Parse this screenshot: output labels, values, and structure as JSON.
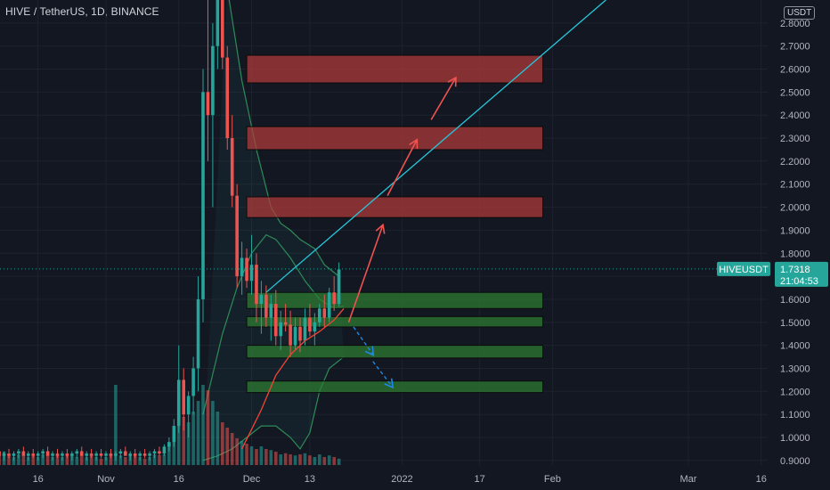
{
  "chart_data": {
    "type": "candlestick",
    "title": "HIVE / TetherUS, 1D, BINANCE",
    "currency": "USDT",
    "symbol_tag": "HIVEUSDT",
    "last_price": "1.7318",
    "countdown": "21:04:53",
    "ylim": [
      0.88,
      2.9
    ],
    "y_ticks": [
      "0.9000",
      "1.0000",
      "1.1000",
      "1.2000",
      "1.3000",
      "1.4000",
      "1.5000",
      "1.6000",
      "1.7000",
      "1.8000",
      "1.9000",
      "2.0000",
      "2.1000",
      "2.2000",
      "2.3000",
      "2.4000",
      "2.5000",
      "2.6000",
      "2.7000",
      "2.8000"
    ],
    "x_ticks": [
      {
        "label": "16",
        "day": -14
      },
      {
        "label": "Nov",
        "day": 0
      },
      {
        "label": "16",
        "day": 15
      },
      {
        "label": "Dec",
        "day": 30
      },
      {
        "label": "13",
        "day": 42
      },
      {
        "label": "2022",
        "day": 61
      },
      {
        "label": "17",
        "day": 77
      },
      {
        "label": "Feb",
        "day": 92
      },
      {
        "label": "Mar",
        "day": 120
      },
      {
        "label": "16",
        "day": 135
      }
    ],
    "candles": [
      [
        -28,
        0.92,
        0.94,
        0.9,
        0.93
      ],
      [
        -27,
        0.93,
        0.95,
        0.91,
        0.92
      ],
      [
        -26,
        0.92,
        0.94,
        0.9,
        0.93
      ],
      [
        -25,
        0.93,
        0.96,
        0.91,
        0.95
      ],
      [
        -24,
        0.95,
        0.97,
        0.92,
        0.93
      ],
      [
        -23,
        0.93,
        0.95,
        0.91,
        0.94
      ],
      [
        -22,
        0.94,
        0.96,
        0.92,
        0.92
      ],
      [
        -21,
        0.92,
        0.94,
        0.9,
        0.93
      ],
      [
        -20,
        0.93,
        0.95,
        0.91,
        0.92
      ],
      [
        -19,
        0.92,
        0.94,
        0.9,
        0.93
      ],
      [
        -18,
        0.93,
        0.95,
        0.91,
        0.94
      ],
      [
        -17,
        0.94,
        0.96,
        0.92,
        0.92
      ],
      [
        -16,
        0.92,
        0.94,
        0.9,
        0.93
      ],
      [
        -15,
        0.93,
        0.95,
        0.91,
        0.92
      ],
      [
        -14,
        0.92,
        0.94,
        0.9,
        0.93
      ],
      [
        -13,
        0.93,
        0.95,
        0.91,
        0.94
      ],
      [
        -12,
        0.94,
        0.96,
        0.92,
        0.92
      ],
      [
        -11,
        0.92,
        0.94,
        0.9,
        0.93
      ],
      [
        -10,
        0.93,
        0.95,
        0.91,
        0.92
      ],
      [
        -9,
        0.92,
        0.94,
        0.9,
        0.93
      ],
      [
        -8,
        0.93,
        0.95,
        0.91,
        0.92
      ],
      [
        -7,
        0.92,
        0.94,
        0.9,
        0.93
      ],
      [
        -6,
        0.93,
        0.95,
        0.91,
        0.94
      ],
      [
        -5,
        0.94,
        0.96,
        0.92,
        0.92
      ],
      [
        -4,
        0.92,
        0.94,
        0.9,
        0.93
      ],
      [
        -3,
        0.93,
        0.95,
        0.91,
        0.92
      ],
      [
        -2,
        0.92,
        0.94,
        0.9,
        0.93
      ],
      [
        -1,
        0.93,
        0.95,
        0.91,
        0.92
      ],
      [
        0,
        0.92,
        0.94,
        0.9,
        0.93
      ],
      [
        1,
        0.93,
        0.95,
        0.91,
        0.92
      ],
      [
        2,
        0.92,
        0.94,
        0.9,
        0.93
      ],
      [
        3,
        0.93,
        0.95,
        0.91,
        0.94
      ],
      [
        4,
        0.94,
        0.96,
        0.92,
        0.92
      ],
      [
        5,
        0.92,
        0.94,
        0.9,
        0.93
      ],
      [
        6,
        0.93,
        0.95,
        0.91,
        0.92
      ],
      [
        7,
        0.92,
        0.94,
        0.9,
        0.93
      ],
      [
        8,
        0.93,
        0.95,
        0.91,
        0.92
      ],
      [
        9,
        0.92,
        0.94,
        0.9,
        0.93
      ],
      [
        10,
        0.93,
        0.95,
        0.91,
        0.94
      ],
      [
        11,
        0.94,
        0.96,
        0.92,
        0.93
      ],
      [
        12,
        0.93,
        0.97,
        0.92,
        0.96
      ],
      [
        13,
        0.96,
        1.0,
        0.94,
        0.98
      ],
      [
        14,
        0.98,
        1.08,
        0.96,
        1.05
      ],
      [
        15,
        1.05,
        1.4,
        1.02,
        1.25
      ],
      [
        16,
        1.25,
        1.3,
        1.03,
        1.1
      ],
      [
        17,
        1.1,
        1.2,
        1.0,
        1.18
      ],
      [
        18,
        1.18,
        1.35,
        1.1,
        1.3
      ],
      [
        19,
        1.3,
        1.7,
        1.2,
        1.6
      ],
      [
        20,
        1.6,
        2.6,
        1.5,
        2.5
      ],
      [
        21,
        2.5,
        3.0,
        2.2,
        2.4
      ],
      [
        22,
        2.4,
        2.8,
        2.0,
        2.7
      ],
      [
        23,
        2.7,
        3.1,
        2.6,
        2.95
      ],
      [
        24,
        2.95,
        3.05,
        2.6,
        2.65
      ],
      [
        25,
        2.65,
        2.7,
        2.25,
        2.3
      ],
      [
        26,
        2.3,
        2.4,
        2.0,
        2.05
      ],
      [
        27,
        2.05,
        2.1,
        1.65,
        1.7
      ],
      [
        28,
        1.7,
        1.85,
        1.62,
        1.78
      ],
      [
        29,
        1.78,
        1.82,
        1.65,
        1.68
      ],
      [
        30,
        1.68,
        1.88,
        1.62,
        1.75
      ],
      [
        31,
        1.75,
        1.8,
        1.5,
        1.58
      ],
      [
        32,
        1.58,
        1.68,
        1.45,
        1.62
      ],
      [
        33,
        1.62,
        1.66,
        1.48,
        1.52
      ],
      [
        34,
        1.52,
        1.62,
        1.42,
        1.58
      ],
      [
        35,
        1.58,
        1.64,
        1.4,
        1.44
      ],
      [
        36,
        1.44,
        1.55,
        1.38,
        1.5
      ],
      [
        37,
        1.5,
        1.58,
        1.46,
        1.49
      ],
      [
        38,
        1.49,
        1.55,
        1.35,
        1.4
      ],
      [
        39,
        1.4,
        1.52,
        1.38,
        1.48
      ],
      [
        40,
        1.48,
        1.52,
        1.37,
        1.42
      ],
      [
        41,
        1.42,
        1.56,
        1.4,
        1.52
      ],
      [
        42,
        1.52,
        1.58,
        1.44,
        1.46
      ],
      [
        43,
        1.46,
        1.54,
        1.4,
        1.5
      ],
      [
        44,
        1.5,
        1.58,
        1.48,
        1.56
      ],
      [
        45,
        1.56,
        1.62,
        1.48,
        1.52
      ],
      [
        46,
        1.52,
        1.65,
        1.5,
        1.63
      ],
      [
        47,
        1.63,
        1.7,
        1.55,
        1.58
      ],
      [
        48,
        1.58,
        1.76,
        1.57,
        1.73
      ]
    ],
    "volume": [
      [
        -28,
        0.015
      ],
      [
        -27,
        0.02
      ],
      [
        -26,
        0.015
      ],
      [
        -25,
        0.02
      ],
      [
        -24,
        0.018
      ],
      [
        -23,
        0.015
      ],
      [
        -22,
        0.02
      ],
      [
        -21,
        0.025
      ],
      [
        -20,
        0.02
      ],
      [
        -19,
        0.015
      ],
      [
        -18,
        0.02
      ],
      [
        -17,
        0.018
      ],
      [
        -16,
        0.015
      ],
      [
        -15,
        0.02
      ],
      [
        -14,
        0.015
      ],
      [
        -13,
        0.02
      ],
      [
        -12,
        0.018
      ],
      [
        -11,
        0.015
      ],
      [
        -10,
        0.02
      ],
      [
        -9,
        0.015
      ],
      [
        -8,
        0.02
      ],
      [
        -7,
        0.018
      ],
      [
        -6,
        0.015
      ],
      [
        -5,
        0.02
      ],
      [
        -4,
        0.015
      ],
      [
        -3,
        0.02
      ],
      [
        -2,
        0.015
      ],
      [
        -1,
        0.012
      ],
      [
        0,
        0.015
      ],
      [
        1,
        0.02
      ],
      [
        2,
        0.15
      ],
      [
        3,
        0.018
      ],
      [
        4,
        0.015
      ],
      [
        5,
        0.02
      ],
      [
        6,
        0.018
      ],
      [
        7,
        0.015
      ],
      [
        8,
        0.012
      ],
      [
        9,
        0.015
      ],
      [
        10,
        0.02
      ],
      [
        11,
        0.018
      ],
      [
        12,
        0.02
      ],
      [
        13,
        0.04
      ],
      [
        14,
        0.06
      ],
      [
        15,
        0.12
      ],
      [
        16,
        0.09
      ],
      [
        17,
        0.08
      ],
      [
        18,
        0.1
      ],
      [
        19,
        0.12
      ],
      [
        20,
        0.15
      ],
      [
        21,
        0.14
      ],
      [
        22,
        0.12
      ],
      [
        23,
        0.1
      ],
      [
        24,
        0.08
      ],
      [
        25,
        0.07
      ],
      [
        26,
        0.06
      ],
      [
        27,
        0.05
      ],
      [
        28,
        0.045
      ],
      [
        29,
        0.04
      ],
      [
        30,
        0.035
      ],
      [
        31,
        0.03
      ],
      [
        32,
        0.035
      ],
      [
        33,
        0.03
      ],
      [
        34,
        0.028
      ],
      [
        35,
        0.025
      ],
      [
        36,
        0.02
      ],
      [
        37,
        0.022
      ],
      [
        38,
        0.02
      ],
      [
        39,
        0.018
      ],
      [
        40,
        0.02
      ],
      [
        41,
        0.022
      ],
      [
        42,
        0.018
      ],
      [
        43,
        0.015
      ],
      [
        44,
        0.02
      ],
      [
        45,
        0.015
      ],
      [
        46,
        0.018
      ],
      [
        47,
        0.015
      ],
      [
        48,
        0.012
      ]
    ],
    "resistance_zones": [
      [
        2.54,
        2.66
      ],
      [
        2.25,
        2.35
      ],
      [
        1.955,
        2.045
      ]
    ],
    "support_zones": [
      [
        1.56,
        1.63
      ],
      [
        1.48,
        1.525
      ],
      [
        1.345,
        1.4
      ],
      [
        1.195,
        1.245
      ]
    ],
    "zone_range_days": [
      29,
      90
    ],
    "trendline": {
      "from": [
        33,
        1.63
      ],
      "to": [
        103,
        2.9
      ]
    },
    "ema_curve": [
      [
        28,
        0.95
      ],
      [
        32,
        1.12
      ],
      [
        35,
        1.27
      ],
      [
        38,
        1.36
      ],
      [
        41,
        1.42
      ],
      [
        44,
        1.46
      ],
      [
        47,
        1.51
      ],
      [
        49,
        1.56
      ]
    ],
    "bollinger_upper": [
      [
        25,
        2.95
      ],
      [
        28,
        2.55
      ],
      [
        31,
        2.25
      ],
      [
        34,
        2.0
      ],
      [
        36,
        1.93
      ],
      [
        38,
        1.9
      ],
      [
        40,
        1.86
      ],
      [
        43,
        1.82
      ],
      [
        45,
        1.75
      ],
      [
        48,
        1.7
      ]
    ],
    "bollinger_middle": [
      [
        20,
        1.1
      ],
      [
        24,
        1.45
      ],
      [
        27,
        1.65
      ],
      [
        30,
        1.8
      ],
      [
        33,
        1.88
      ],
      [
        35,
        1.86
      ],
      [
        38,
        1.78
      ],
      [
        41,
        1.68
      ],
      [
        44,
        1.6
      ],
      [
        47,
        1.56
      ],
      [
        49,
        1.57
      ]
    ],
    "bollinger_lower": [
      [
        20,
        0.9
      ],
      [
        23,
        0.92
      ],
      [
        26,
        0.95
      ],
      [
        29,
        1.0
      ],
      [
        32,
        1.05
      ],
      [
        35,
        1.05
      ],
      [
        38,
        1.0
      ],
      [
        40,
        0.95
      ],
      [
        42,
        1.02
      ],
      [
        44,
        1.2
      ],
      [
        46,
        1.3
      ],
      [
        49,
        1.35
      ]
    ],
    "arrows_up": [
      {
        "from": [
          50,
          1.5
        ],
        "to": [
          57,
          1.92
        ]
      },
      {
        "from": [
          58,
          2.05
        ],
        "to": [
          64,
          2.29
        ]
      },
      {
        "from": [
          67,
          2.38
        ],
        "to": [
          72,
          2.56
        ]
      }
    ],
    "arrows_down": [
      {
        "from": [
          51,
          1.48
        ],
        "to": [
          55,
          1.36
        ]
      },
      {
        "from": [
          55,
          1.33
        ],
        "to": [
          59,
          1.22
        ]
      }
    ],
    "colors": {
      "background": "#131722",
      "bull": "#26a69a",
      "bear": "#ef5350",
      "resistance_fill": "#b23a3a",
      "support_fill": "#2e7d32",
      "trendline": "#26c6da",
      "ema": "#f44336",
      "bollinger": "#2e8b57",
      "arrow_up": "#ef5350",
      "arrow_down": "#1e88e5",
      "price_line": "#26a69a",
      "axis_text": "#b2b5be"
    }
  }
}
